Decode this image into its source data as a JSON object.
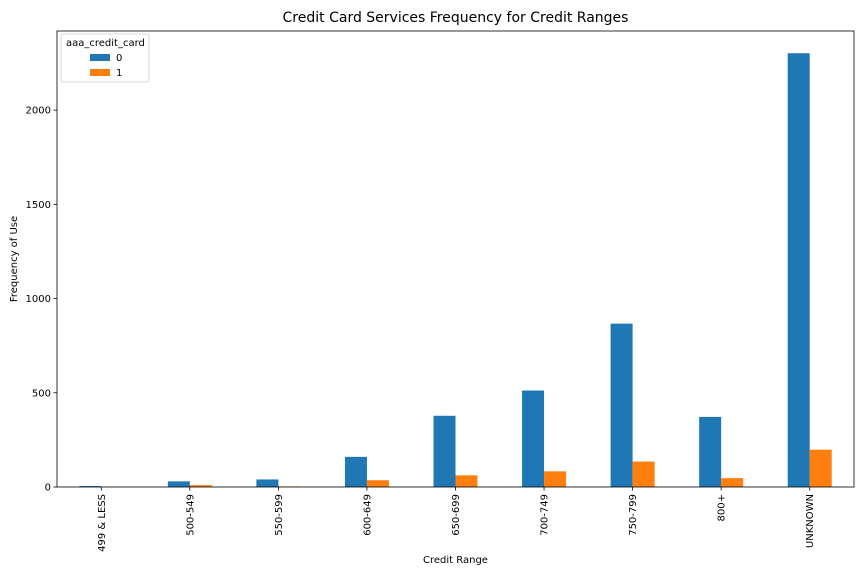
{
  "chart_data": {
    "type": "bar",
    "title": "Credit Card Services Frequency for Credit Ranges",
    "xlabel": "Credit Range",
    "ylabel": "Frequency of Use",
    "categories": [
      "499 & LESS",
      "500-549",
      "550-599",
      "600-649",
      "650-699",
      "700-749",
      "750-799",
      "800+",
      "UNKNOWN"
    ],
    "series": [
      {
        "name": "0",
        "color": "#1f77b4",
        "values": [
          5,
          30,
          40,
          160,
          378,
          512,
          867,
          372,
          2302
        ]
      },
      {
        "name": "1",
        "color": "#ff7f0e",
        "values": [
          0,
          10,
          3,
          36,
          62,
          83,
          135,
          47,
          198
        ]
      }
    ],
    "ylim": [
      0,
      2420
    ],
    "yticks": [
      0,
      500,
      1000,
      1500,
      2000
    ],
    "legend": {
      "title": "aaa_credit_card",
      "position": "top-left"
    },
    "grid": false
  }
}
